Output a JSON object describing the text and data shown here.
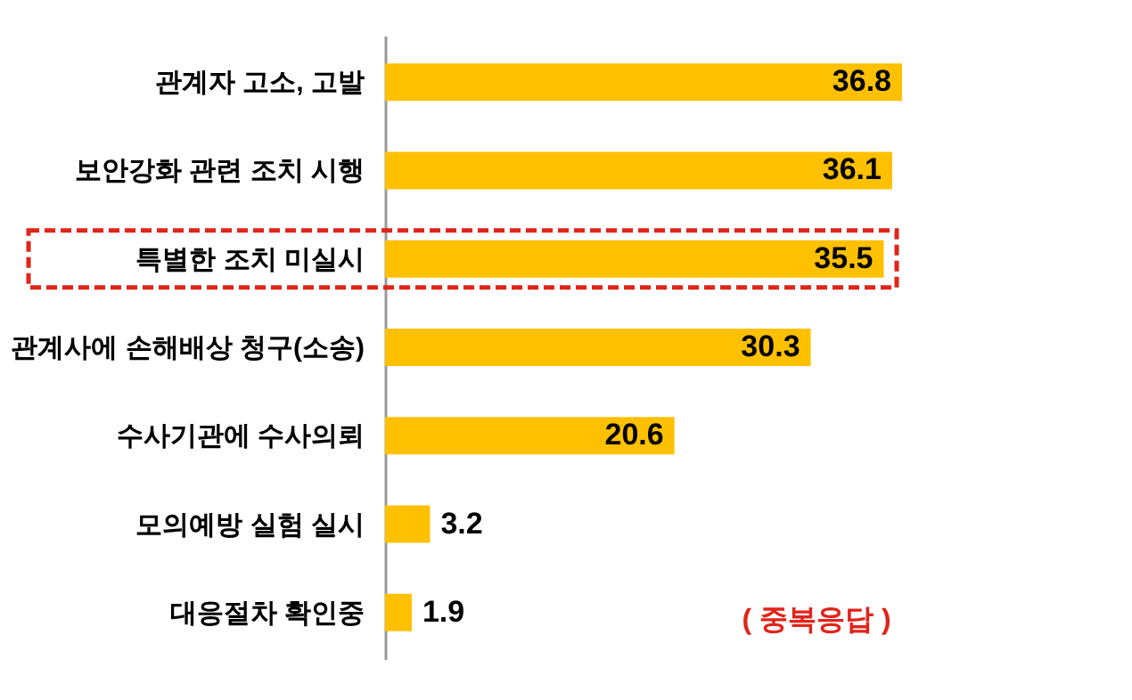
{
  "chart_data": {
    "type": "bar",
    "orientation": "horizontal",
    "categories": [
      "관계자 고소, 고발",
      "보안강화 관련 조치 시행",
      "특별한 조치 미실시",
      "관계사에 손해배상 청구(소송)",
      "수사기관에 수사의뢰",
      "모의예방 실험 실시",
      "대응절차 확인중"
    ],
    "values": [
      36.8,
      36.1,
      35.5,
      30.3,
      20.6,
      3.2,
      1.9
    ],
    "color": "#ffc000",
    "data_labels": true,
    "annotations": [
      "( 중복응답 )"
    ]
  }
}
